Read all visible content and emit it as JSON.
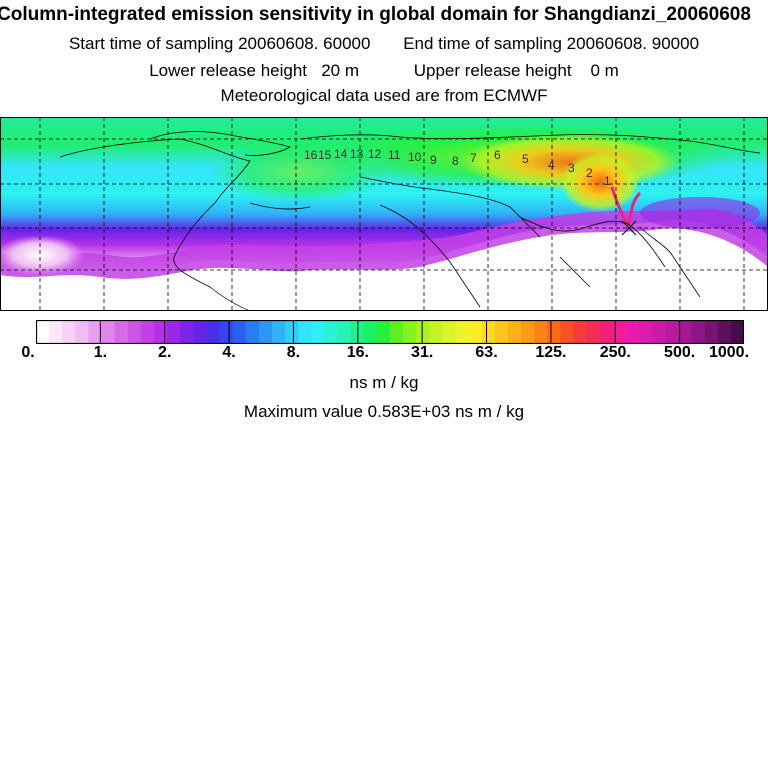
{
  "header": {
    "title": "Column-integrated emission sensitivity in global domain for Shangdianzi_20060608",
    "start_label": "Start time of sampling",
    "start_value": "20060608. 60000",
    "end_label": "End time of sampling",
    "end_value": "20060608. 90000",
    "lower_label": "Lower release height",
    "lower_value": "20 m",
    "upper_label": "Upper release height",
    "upper_value": "0 m",
    "met_line": "Meteorological data used are from ECMWF"
  },
  "map": {
    "domain": "global",
    "station": "Shangdianzi",
    "trajectory_labels": [
      "16",
      "15",
      "14",
      "13",
      "12",
      "11",
      "10",
      "9",
      "8",
      "7",
      "6",
      "5",
      "4",
      "3",
      "2",
      "1"
    ]
  },
  "colorbar": {
    "tick_labels": [
      "0.",
      "1.",
      "2.",
      "4.",
      "8.",
      "16.",
      "31.",
      "63.",
      "125.",
      "250.",
      "500.",
      "1000."
    ],
    "colors": [
      "#ffffff",
      "#fbe6fb",
      "#f6d2f7",
      "#f0bdf3",
      "#e7a0ef",
      "#df85ec",
      "#d56be8",
      "#cc55e6",
      "#c240e6",
      "#b530e8",
      "#9a28e8",
      "#7e24e6",
      "#6424e8",
      "#4a2eea",
      "#3644ef",
      "#2a60f0",
      "#2a7cf2",
      "#2d97f5",
      "#2fb2f7",
      "#30cdf9",
      "#34e4fb",
      "#2ef0f0",
      "#29f2d4",
      "#25f2b3",
      "#22f18b",
      "#1cf064",
      "#28ef3a",
      "#5cf023",
      "#84f21e",
      "#a8f320",
      "#c4f424",
      "#dcf529",
      "#eef42c",
      "#fcec26",
      "#fdd91f",
      "#fec61a",
      "#feb117",
      "#fe9a15",
      "#fd8214",
      "#fd6a18",
      "#fb4f26",
      "#f53c3a",
      "#f42d55",
      "#f31f78",
      "#f21c96",
      "#ec1aac",
      "#dd1aae",
      "#cc1aa8",
      "#ba1a9e",
      "#a61892",
      "#8e1684",
      "#761472",
      "#5c115e",
      "#440c48"
    ],
    "unit": "ns m / kg"
  },
  "max_value_line": "Maximum value  0.583E+03 ns m / kg"
}
